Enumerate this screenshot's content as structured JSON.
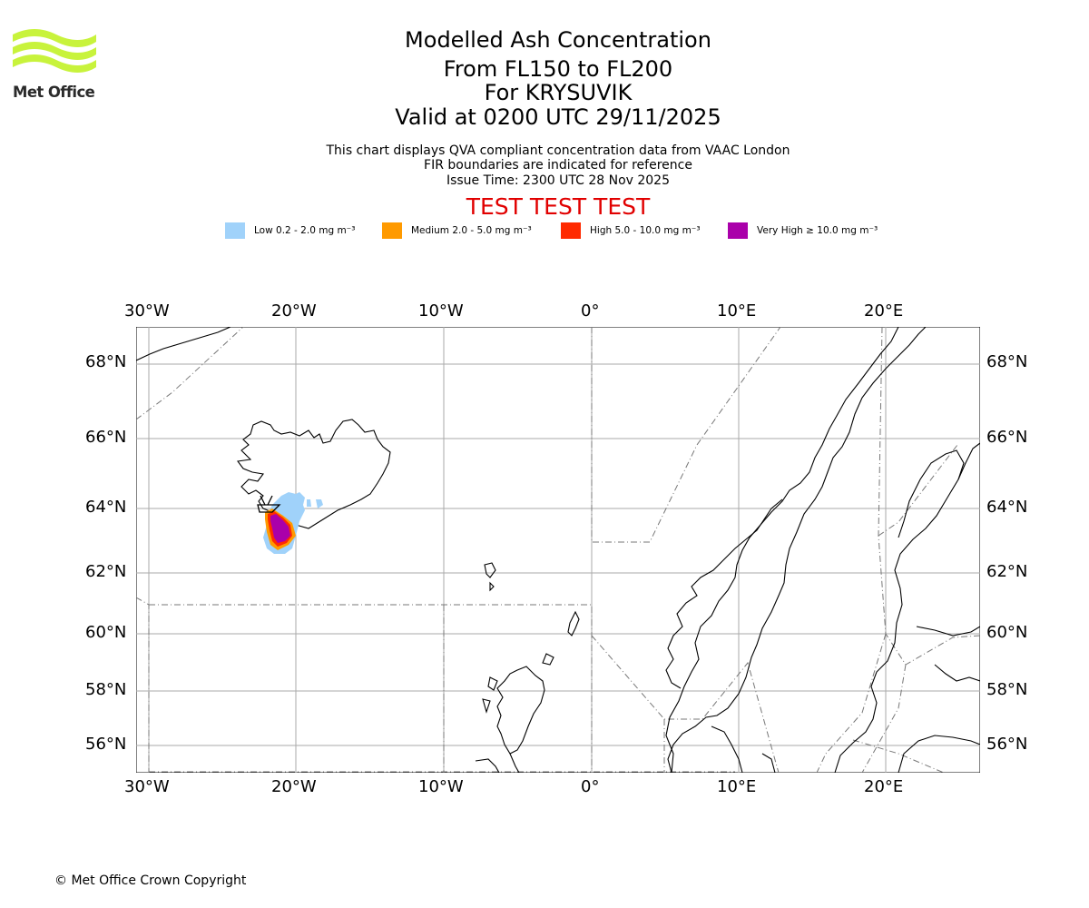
{
  "logo": {
    "text": "Met Office",
    "color": "#c8f33c"
  },
  "header": {
    "title": "Modelled Ash Concentration",
    "levels": "From FL150 to FL200",
    "volcano": "For KRYSUVIK",
    "valid": "Valid at 0200 UTC 29/11/2025",
    "info1": "This chart displays QVA compliant concentration data from VAAC London",
    "info2": "FIR boundaries are indicated for reference",
    "issue": "Issue Time: 2300 UTC 28 Nov 2025",
    "test": "TEST TEST TEST"
  },
  "legend": [
    {
      "label": "Low 0.2 - 2.0 mg m⁻³",
      "color": "#a0d2fa"
    },
    {
      "label": "Medium 2.0 - 5.0 mg m⁻³",
      "color": "#ff9a00"
    },
    {
      "label": "High 5.0 - 10.0 mg m⁻³",
      "color": "#ff2a00"
    },
    {
      "label": "Very High  ≥  10.0 mg m⁻³",
      "color": "#aa00aa"
    }
  ],
  "axes": {
    "lon_labels": [
      "30°W",
      "20°W",
      "10°W",
      "0°",
      "10°E",
      "20°E"
    ],
    "lat_labels": [
      "68°N",
      "66°N",
      "64°N",
      "62°N",
      "60°N",
      "58°N",
      "56°N"
    ]
  },
  "copyright": "© Met Office Crown Copyright"
}
